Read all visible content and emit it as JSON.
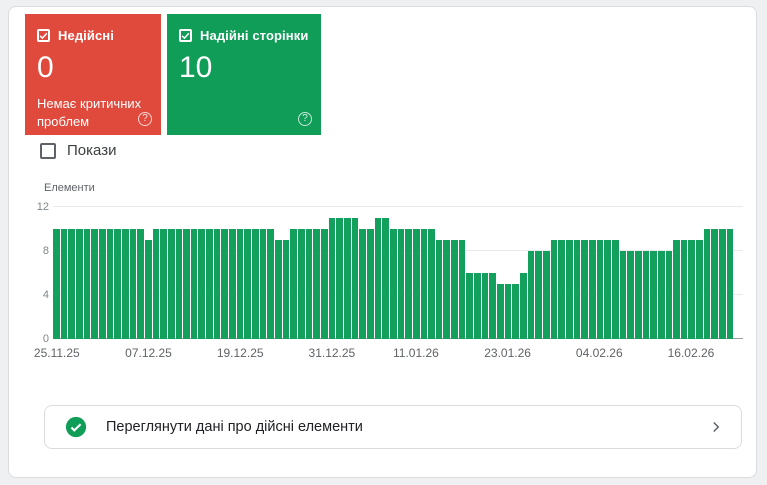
{
  "cards": {
    "invalid": {
      "label": "Недійсні",
      "value": "0",
      "subtext": "Немає критичних проблем",
      "color": "#e04a3d",
      "checked": true
    },
    "valid": {
      "label": "Надійні сторінки",
      "value": "10",
      "color": "#0f9d58",
      "checked": true
    }
  },
  "icons": {
    "help_glyph": "?"
  },
  "impressions_toggle": {
    "label": "Покази",
    "checked": false
  },
  "chart_data": {
    "type": "bar",
    "title": "Елементи",
    "ylabel": "Елементи",
    "xlabel": "",
    "ylim": [
      0,
      12
    ],
    "yticks": [
      0,
      4,
      8,
      12
    ],
    "grid": true,
    "bar_color": "#12a05c",
    "x_tick_labels": [
      "25.11.25",
      "07.12.25",
      "19.12.25",
      "31.12.25",
      "11.01.26",
      "23.01.26",
      "04.02.26",
      "16.02.26"
    ],
    "x_tick_bar_indices": [
      0,
      12,
      24,
      36,
      47,
      59,
      71,
      83
    ],
    "series_name": "Надійні сторінки",
    "values": [
      10,
      10,
      10,
      10,
      10,
      10,
      10,
      10,
      10,
      10,
      10,
      10,
      9,
      10,
      10,
      10,
      10,
      10,
      10,
      10,
      10,
      10,
      10,
      10,
      10,
      10,
      10,
      10,
      10,
      9,
      9,
      10,
      10,
      10,
      10,
      10,
      11,
      11,
      11,
      11,
      10,
      10,
      11,
      11,
      10,
      10,
      10,
      10,
      10,
      10,
      9,
      9,
      9,
      9,
      6,
      6,
      6,
      6,
      5,
      5,
      5,
      6,
      8,
      8,
      8,
      9,
      9,
      9,
      9,
      9,
      9,
      9,
      9,
      9,
      8,
      8,
      8,
      8,
      8,
      8,
      8,
      9,
      9,
      9,
      9,
      10,
      10,
      10,
      10
    ]
  },
  "action_row": {
    "label": "Переглянути дані про дійсні елементи"
  }
}
